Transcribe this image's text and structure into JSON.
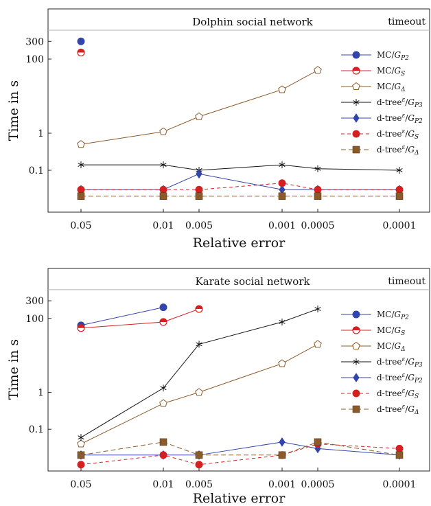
{
  "colors": {
    "mc_gp2": "#3344aa",
    "mc_gs": "#d42020",
    "mc_gdelta": "#8b5a2b",
    "dtree_gp3": "#111111",
    "dtree_gp2": "#3344aa",
    "dtree_gs": "#d42020",
    "dtree_gdelta": "#8b5a2b",
    "timeout_line": "#b0b0b0"
  },
  "chart_data": [
    {
      "type": "line",
      "title": "Dolphin social network",
      "xlabel": "Relative error",
      "ylabel": "Time in s",
      "y_scale": "log",
      "ylim": [
        0.005,
        2000
      ],
      "y_ticks": [
        "0.1",
        "1",
        "100",
        "300"
      ],
      "timeout_label": "timeout",
      "timeout_value": 600,
      "categories": [
        "0.05",
        "0.01",
        "0.005",
        "0.001",
        "0.0005",
        "0.0001"
      ],
      "legend_position": "right",
      "grid": false,
      "series": [
        {
          "name": "MC/G_P2",
          "marker": "circle",
          "values": [
            300,
            null,
            null,
            null,
            null,
            null
          ]
        },
        {
          "name": "MC/G_S",
          "marker": "half-circle",
          "values": [
            150,
            null,
            null,
            null,
            null,
            null
          ]
        },
        {
          "name": "MC/G_Δ",
          "marker": "pentagon",
          "values": [
            0.5,
            1.1,
            2.8,
            15,
            50,
            null
          ]
        },
        {
          "name": "d-tree^ε/G_P3",
          "marker": "star",
          "values": [
            0.14,
            0.14,
            0.1,
            0.14,
            0.11,
            0.1
          ]
        },
        {
          "name": "d-tree^ε/G_P2",
          "marker": "diamond",
          "values": [
            0.03,
            0.03,
            0.08,
            0.03,
            0.03,
            0.03
          ]
        },
        {
          "name": "d-tree^ε/G_S",
          "marker": "circle",
          "values": [
            0.03,
            0.03,
            0.03,
            0.045,
            0.03,
            0.03
          ]
        },
        {
          "name": "d-tree^ε/G_Δ",
          "marker": "square",
          "values": [
            0.02,
            0.02,
            0.02,
            0.02,
            0.02,
            0.02
          ]
        }
      ]
    },
    {
      "type": "line",
      "title": "Karate social network",
      "xlabel": "Relative error",
      "ylabel": "Time in s",
      "y_scale": "log",
      "ylim": [
        0.005,
        2000
      ],
      "y_ticks": [
        "0.1",
        "1",
        "100",
        "300"
      ],
      "timeout_label": "timeout",
      "timeout_value": 600,
      "categories": [
        "0.05",
        "0.01",
        "0.005",
        "0.001",
        "0.0005",
        "0.0001"
      ],
      "legend_position": "right",
      "grid": false,
      "series": [
        {
          "name": "MC/G_P2",
          "marker": "circle",
          "values": [
            65,
            200,
            null,
            null,
            null,
            null
          ]
        },
        {
          "name": "MC/G_S",
          "marker": "half-circle",
          "values": [
            55,
            80,
            180,
            null,
            null,
            null
          ]
        },
        {
          "name": "MC/G_Δ",
          "marker": "pentagon",
          "values": [
            0.04,
            0.5,
            1,
            6,
            20,
            null
          ]
        },
        {
          "name": "d-tree^ε/G_P3",
          "marker": "star",
          "values": [
            0.06,
            1.3,
            20,
            80,
            180,
            null
          ]
        },
        {
          "name": "d-tree^ε/G_P2",
          "marker": "diamond",
          "values": [
            0.02,
            0.02,
            0.02,
            0.045,
            0.03,
            0.02
          ]
        },
        {
          "name": "d-tree^ε/G_S",
          "marker": "circle",
          "values": [
            0.011,
            0.02,
            0.011,
            0.02,
            0.04,
            0.03
          ]
        },
        {
          "name": "d-tree^ε/G_Δ",
          "marker": "square",
          "values": [
            0.02,
            0.045,
            0.02,
            0.02,
            0.045,
            0.02
          ]
        }
      ]
    }
  ]
}
